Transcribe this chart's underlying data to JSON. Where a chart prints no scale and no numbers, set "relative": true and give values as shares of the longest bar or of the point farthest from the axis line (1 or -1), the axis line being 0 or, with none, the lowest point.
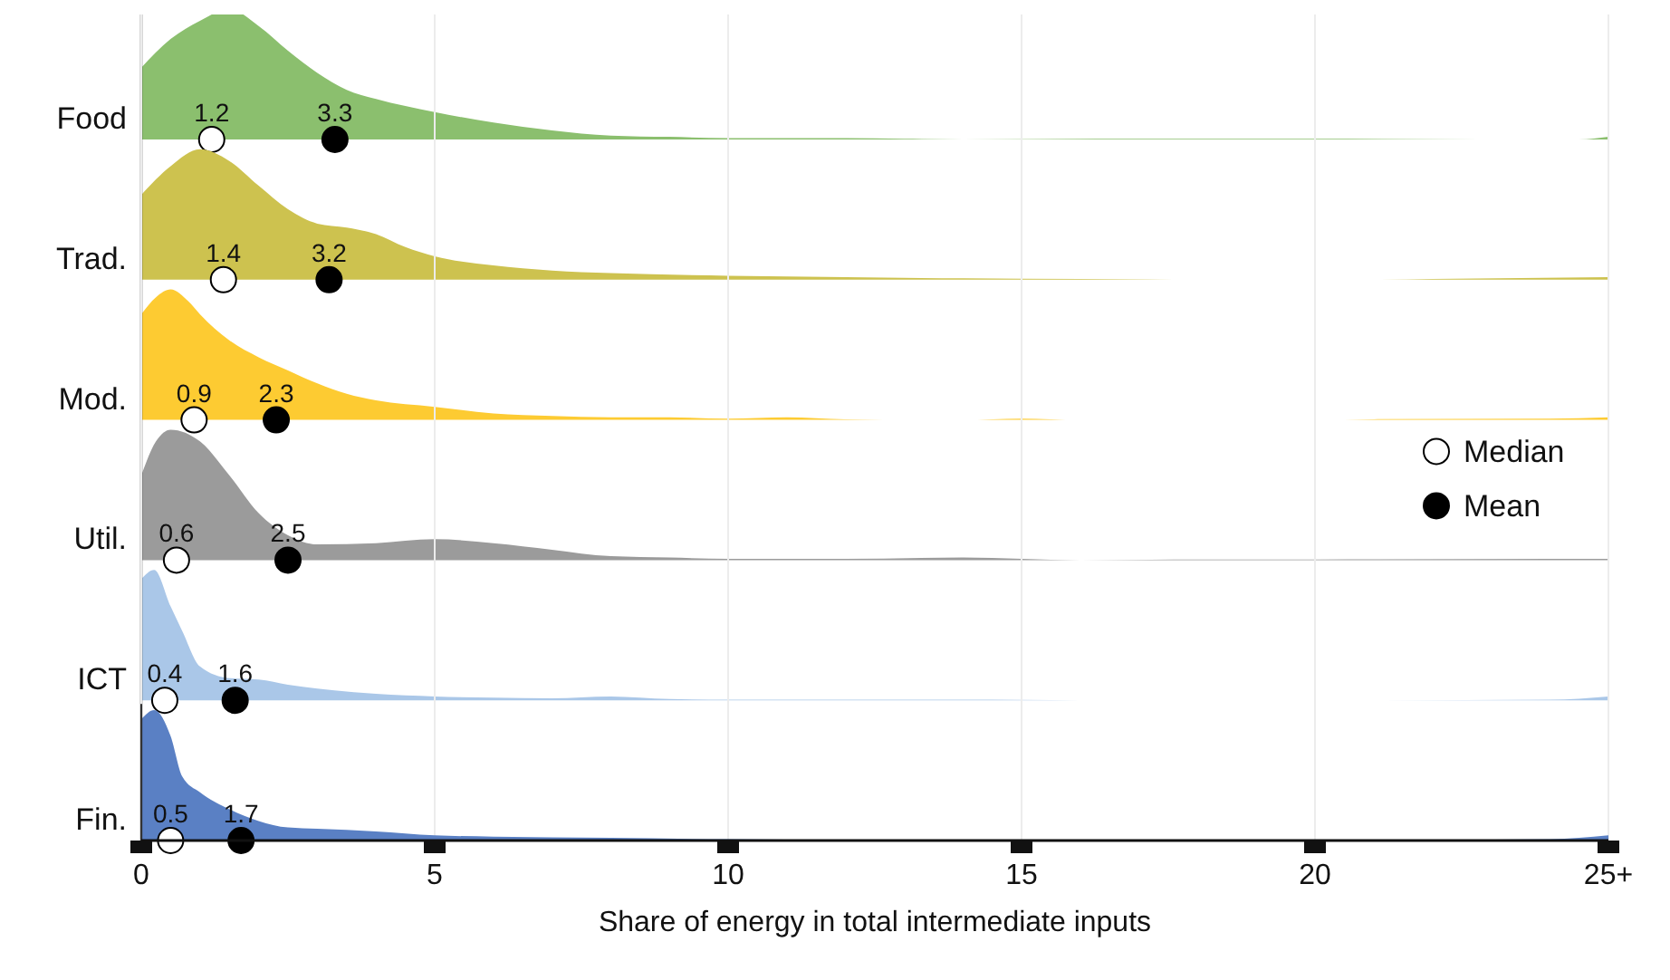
{
  "chart_data": [
    {
      "type": "area",
      "relative": true,
      "ylabel": "Food",
      "xlim": [
        0,
        25
      ],
      "tick_labels": false,
      "x": [
        0,
        0.5,
        1,
        1.5,
        2,
        2.5,
        3,
        3.5,
        4,
        5,
        6,
        7,
        8,
        9,
        10,
        12,
        13,
        14,
        17,
        20,
        24.5,
        25
      ],
      "series": [
        {
          "color": "#8bbf6e",
          "values": [
            0.55,
            0.77,
            0.91,
            1,
            0.87,
            0.68,
            0.51,
            0.38,
            0.31,
            0.21,
            0.13,
            0.07,
            0.03,
            0.02,
            0.01,
            0.01,
            0.005,
            0,
            0.005,
            0.005,
            0,
            0.02
          ]
        },
        {
          "type": "scatter",
          "color": "#ffffff",
          "x": [
            1.2
          ],
          "values": [
            0
          ]
        },
        {
          "type": "scatter",
          "color": "#000000",
          "x": [
            3.3
          ],
          "values": [
            0
          ]
        }
      ],
      "annotations": [
        {
          "text": "1.2",
          "x": 1.2,
          "y": 0
        },
        {
          "text": "3.3",
          "x": 3.3,
          "y": 0
        }
      ]
    },
    {
      "type": "area",
      "relative": true,
      "ylabel": "Trad.",
      "xlim": [
        0,
        25
      ],
      "tick_labels": false,
      "x": [
        0,
        0.5,
        1,
        1.5,
        2,
        2.5,
        3,
        3.5,
        4,
        4.5,
        5,
        6,
        7,
        8,
        10,
        12,
        14,
        16,
        18,
        21,
        22,
        25
      ],
      "series": [
        {
          "color": "#cdc24f",
          "values": [
            0.65,
            0.87,
            1,
            0.91,
            0.72,
            0.54,
            0.43,
            0.4,
            0.35,
            0.25,
            0.18,
            0.11,
            0.07,
            0.05,
            0.03,
            0.02,
            0.01,
            0.005,
            0,
            0,
            0.005,
            0.02
          ]
        },
        {
          "type": "scatter",
          "color": "#ffffff",
          "x": [
            1.4
          ],
          "values": [
            0
          ]
        },
        {
          "type": "scatter",
          "color": "#000000",
          "x": [
            3.2
          ],
          "values": [
            0
          ]
        }
      ],
      "annotations": [
        {
          "text": "1.4",
          "x": 1.4,
          "y": 0
        },
        {
          "text": "3.2",
          "x": 3.2,
          "y": 0
        }
      ]
    },
    {
      "type": "area",
      "relative": true,
      "ylabel": "Mod.",
      "xlim": [
        0,
        25
      ],
      "tick_labels": false,
      "x": [
        0,
        0.25,
        0.5,
        0.8,
        1,
        1.5,
        2,
        2.5,
        3,
        3.5,
        4,
        5,
        6,
        7,
        8,
        9,
        10,
        11,
        12,
        14,
        15,
        16,
        20,
        21,
        24,
        25
      ],
      "series": [
        {
          "color": "#fdcb32",
          "values": [
            0.81,
            0.94,
            1,
            0.91,
            0.81,
            0.61,
            0.48,
            0.38,
            0.28,
            0.2,
            0.15,
            0.1,
            0.05,
            0.03,
            0.02,
            0.02,
            0.01,
            0.02,
            0.005,
            0,
            0.01,
            0,
            0,
            0.005,
            0.01,
            0.02
          ]
        },
        {
          "type": "scatter",
          "color": "#ffffff",
          "x": [
            0.9
          ],
          "values": [
            0
          ]
        },
        {
          "type": "scatter",
          "color": "#000000",
          "x": [
            2.3
          ],
          "values": [
            0
          ]
        }
      ],
      "annotations": [
        {
          "text": "0.9",
          "x": 0.9,
          "y": 0
        },
        {
          "text": "2.3",
          "x": 2.3,
          "y": 0
        }
      ]
    },
    {
      "type": "area",
      "relative": true,
      "ylabel": "Util.",
      "xlim": [
        0,
        25
      ],
      "tick_labels": false,
      "legend": "right",
      "x": [
        0,
        0.25,
        0.5,
        1,
        1.5,
        2,
        2.5,
        3,
        4,
        5,
        6,
        7,
        8,
        9,
        10,
        12,
        14,
        16,
        18,
        20,
        24,
        25
      ],
      "series": [
        {
          "color": "#9b9b9b",
          "values": [
            0.65,
            0.91,
            1,
            0.91,
            0.65,
            0.36,
            0.19,
            0.12,
            0.13,
            0.16,
            0.13,
            0.08,
            0.03,
            0.02,
            0.01,
            0.01,
            0.02,
            0,
            0.005,
            0.005,
            0.01,
            0.01
          ]
        },
        {
          "type": "scatter",
          "name": "Median",
          "color": "#ffffff",
          "x": [
            0.6
          ],
          "values": [
            0
          ]
        },
        {
          "type": "scatter",
          "name": "Mean",
          "color": "#000000",
          "x": [
            2.5
          ],
          "values": [
            0
          ]
        }
      ],
      "annotations": [
        {
          "text": "0.6",
          "x": 0.6,
          "y": 0
        },
        {
          "text": "2.5",
          "x": 2.5,
          "y": 0
        }
      ]
    },
    {
      "type": "area",
      "relative": true,
      "ylabel": "ICT",
      "xlim": [
        0,
        25
      ],
      "tick_labels": false,
      "x": [
        0,
        0.22,
        0.5,
        0.7,
        1,
        1.5,
        2,
        2.5,
        3,
        4,
        5,
        6,
        7,
        8,
        9,
        10,
        14,
        16,
        20,
        24,
        25
      ],
      "series": [
        {
          "color": "#aac7e8",
          "values": [
            0.93,
            1,
            0.72,
            0.53,
            0.26,
            0.17,
            0.16,
            0.12,
            0.09,
            0.05,
            0.03,
            0.02,
            0.015,
            0.03,
            0.01,
            0.005,
            0.005,
            0,
            0,
            0.005,
            0.03
          ]
        },
        {
          "type": "scatter",
          "color": "#ffffff",
          "x": [
            0.4
          ],
          "values": [
            0
          ]
        },
        {
          "type": "scatter",
          "color": "#000000",
          "x": [
            1.6
          ],
          "values": [
            0
          ]
        }
      ],
      "annotations": [
        {
          "text": "0.4",
          "x": 0.4,
          "y": 0
        },
        {
          "text": "1.6",
          "x": 1.6,
          "y": 0
        }
      ]
    },
    {
      "type": "area",
      "relative": true,
      "ylabel": "Fin.",
      "xlabel": "Share of energy in total intermediate inputs",
      "xlim": [
        0,
        25
      ],
      "xticks": [
        0,
        5,
        10,
        15,
        20,
        {
          "value": 25,
          "label": "25+"
        }
      ],
      "tick_labels": "x",
      "grid": "x",
      "x": [
        0,
        0.22,
        0.5,
        0.7,
        1,
        1.5,
        2,
        2.5,
        3,
        4,
        5,
        6,
        8,
        10,
        12,
        15,
        20,
        24,
        25
      ],
      "series": [
        {
          "color": "#5a80c4",
          "values": [
            0.93,
            1,
            0.8,
            0.49,
            0.37,
            0.24,
            0.15,
            0.1,
            0.09,
            0.07,
            0.04,
            0.03,
            0.02,
            0.01,
            0.005,
            0.005,
            0,
            0.01,
            0.04
          ]
        },
        {
          "type": "scatter",
          "color": "#ffffff",
          "x": [
            0.5
          ],
          "values": [
            0
          ]
        },
        {
          "type": "scatter",
          "color": "#000000",
          "x": [
            1.7
          ],
          "values": [
            0
          ]
        }
      ],
      "annotations": [
        {
          "text": "0.5",
          "x": 0.5,
          "y": 0
        },
        {
          "text": "1.7",
          "x": 1.7,
          "y": 0
        }
      ]
    }
  ]
}
